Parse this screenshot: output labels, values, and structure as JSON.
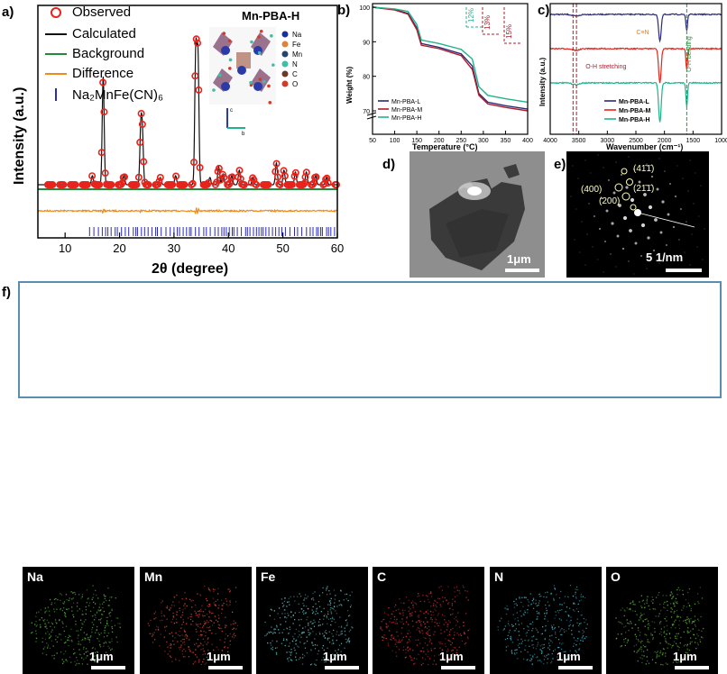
{
  "panel_a": {
    "letter": "a)",
    "title": "Mn-PBA-H",
    "xlabel": "2θ (degree)",
    "ylabel": "Intensity (a.u.)",
    "xticks": [
      "10",
      "20",
      "30",
      "40",
      "50",
      "60"
    ],
    "legend": [
      "Observed",
      "Calculated",
      "Background",
      "Difference",
      "Na₂MnFe(CN)₆"
    ],
    "colors": {
      "observed": "#e8231c",
      "calculated": "#111111",
      "background": "#1f8a3a",
      "difference": "#f08a1c",
      "ticks": "#2b2bb8"
    },
    "crystal_legend": [
      "Na",
      "Fe",
      "Mn",
      "N",
      "C",
      "O"
    ],
    "crystal_colors": [
      "#1f2f9a",
      "#e0823a",
      "#26456b",
      "#3fbfa6",
      "#6b3a2a",
      "#d33a2a"
    ],
    "axis_marks": {
      "c": "c",
      "b": "b"
    }
  },
  "chart_data": [
    {
      "type": "line",
      "title": "Mn-PBA-H",
      "xlabel": "2θ (degree)",
      "ylabel": "Intensity (a.u.)",
      "xlim": [
        5,
        60
      ],
      "series": [
        {
          "name": "Observed",
          "peaks": [
            [
              15.0,
              0.05
            ],
            [
              17.0,
              0.6
            ],
            [
              20.8,
              0.05
            ],
            [
              23.9,
              0.3
            ],
            [
              24.2,
              0.26
            ],
            [
              27.5,
              0.04
            ],
            [
              30.3,
              0.05
            ],
            [
              34.0,
              0.74
            ],
            [
              34.4,
              0.7
            ],
            [
              36.6,
              0.04
            ],
            [
              38.2,
              0.1
            ],
            [
              39.0,
              0.06
            ],
            [
              40.6,
              0.05
            ],
            [
              42.0,
              0.08
            ],
            [
              44.5,
              0.04
            ],
            [
              48.8,
              0.12
            ],
            [
              50.2,
              0.08
            ],
            [
              52.3,
              0.07
            ],
            [
              54.3,
              0.07
            ],
            [
              56.0,
              0.05
            ],
            [
              58.0,
              0.04
            ]
          ]
        },
        {
          "name": "Calculated"
        },
        {
          "name": "Background"
        },
        {
          "name": "Difference"
        },
        {
          "name": "Na₂MnFe(CN)₆"
        }
      ]
    },
    {
      "type": "line",
      "xlabel": "Temperature (°C)",
      "ylabel": "Weight (%)",
      "xlim": [
        50,
        400
      ],
      "ylim_segments": [
        [
          70,
          70
        ],
        [
          70,
          100
        ]
      ],
      "xticks": [
        50,
        100,
        150,
        200,
        250,
        300,
        350,
        400
      ],
      "yticks": [
        70,
        80,
        90,
        100
      ],
      "series": [
        {
          "name": "Mn-PBA-L",
          "color": "#2a2a7a",
          "x": [
            50,
            100,
            130,
            150,
            160,
            200,
            250,
            275,
            290,
            310,
            350,
            400
          ],
          "y": [
            100,
            99.3,
            98.2,
            94,
            89.5,
            88.4,
            86.5,
            83,
            75,
            72.5,
            71.5,
            70.5
          ]
        },
        {
          "name": "Mn-PBA-M",
          "color": "#b01b2a",
          "x": [
            50,
            100,
            130,
            150,
            160,
            200,
            250,
            275,
            290,
            310,
            350,
            400
          ],
          "y": [
            100,
            99.2,
            98,
            93.5,
            89,
            88,
            86,
            82,
            74.5,
            72,
            71,
            70
          ]
        },
        {
          "name": "Mn-PBA-H",
          "color": "#22b38a",
          "x": [
            50,
            100,
            130,
            150,
            160,
            200,
            250,
            275,
            290,
            310,
            350,
            400
          ],
          "y": [
            100,
            99.5,
            98.8,
            95,
            90.5,
            89.5,
            87.8,
            85,
            77,
            74.5,
            73.5,
            72.5
          ]
        }
      ],
      "annotations": [
        "12%",
        "13%",
        "15%"
      ]
    },
    {
      "type": "line",
      "xlabel": "Wavenumber (cm⁻¹)",
      "ylabel": "Intensity (a.u.)",
      "xlim": [
        4000,
        1000
      ],
      "xticks": [
        4000,
        3500,
        3000,
        2500,
        2000,
        1500,
        1000
      ],
      "series": [
        {
          "name": "Mn-PBA-L",
          "color": "#2a2a7a"
        },
        {
          "name": "Mn-PBA-M",
          "color": "#e8231c"
        },
        {
          "name": "Mn-PBA-H",
          "color": "#22b38a"
        }
      ],
      "annotations": [
        "C≡N",
        "O-H stretching",
        "O-H bending"
      ]
    }
  ],
  "panel_b": {
    "letter": "b)",
    "xlabel": "Temperature (°C)",
    "ylabel": "Weight (%)",
    "xticks": [
      "50",
      "100",
      "150",
      "200",
      "250",
      "300",
      "350",
      "400"
    ],
    "yticks": [
      "100",
      "90",
      "80",
      "70"
    ],
    "legend": [
      "Mn-PBA-L",
      "Mn-PBA-M",
      "Mn-PBA-H"
    ],
    "pct": [
      "12%",
      "13%",
      "15%"
    ]
  },
  "panel_c": {
    "letter": "c)",
    "xlabel": "Wavenumber (cm⁻¹)",
    "ylabel": "Intensity (a.u.)",
    "xticks": [
      "4000",
      "3500",
      "3000",
      "2500",
      "2000",
      "1500",
      "1000"
    ],
    "legend": [
      "Mn-PBA-L",
      "Mn-PBA-M",
      "Mn-PBA-H"
    ],
    "cn": "C≡N",
    "oh_stretch": "O-H stretching",
    "oh_bend": "O-H bending"
  },
  "panel_d": {
    "letter": "d)",
    "scale": "1μm"
  },
  "panel_e": {
    "letter": "e)",
    "scale": "5 1/nm",
    "planes": [
      "(41̄1̄)",
      "(400)",
      "(21̄1̄)",
      "(200)"
    ]
  },
  "panel_f": {
    "letter": "f)",
    "scale": "1μm",
    "maps": [
      {
        "element": "Na",
        "color": "#4fa83a"
      },
      {
        "element": "Mn",
        "color": "#c8483a"
      },
      {
        "element": "Fe",
        "color": "#5fb5b5"
      },
      {
        "element": "C",
        "color": "#c8303a"
      },
      {
        "element": "N",
        "color": "#3aa5b5"
      },
      {
        "element": "O",
        "color": "#5fa83a"
      }
    ]
  }
}
